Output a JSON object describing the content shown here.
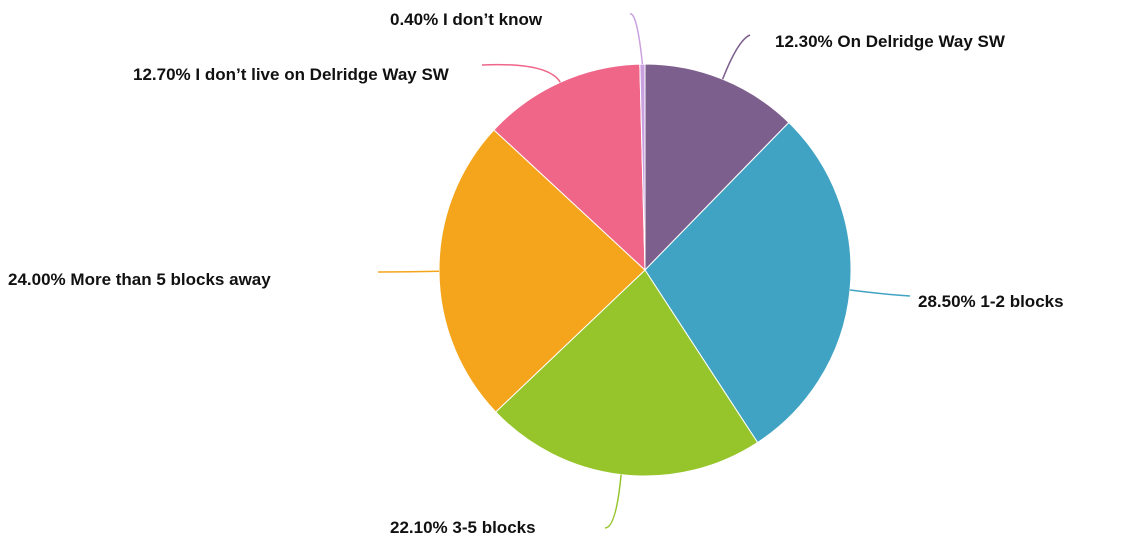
{
  "chart_data": {
    "type": "pie",
    "categories": [
      "On Delridge Way SW",
      "1-2 blocks",
      "3-5 blocks",
      "More than 5 blocks away",
      "I don’t live on Delridge Way SW",
      "I don’t know"
    ],
    "values": [
      12.3,
      28.5,
      22.1,
      24.0,
      12.7,
      0.4
    ],
    "value_labels": [
      "12.30%",
      "28.50%",
      "22.10%",
      "24.00%",
      "12.70%",
      "0.40%"
    ],
    "colors": [
      "#7d5f8e",
      "#41a3c3",
      "#96c52b",
      "#f4a51c",
      "#ef6689",
      "#c9a1e1"
    ]
  }
}
